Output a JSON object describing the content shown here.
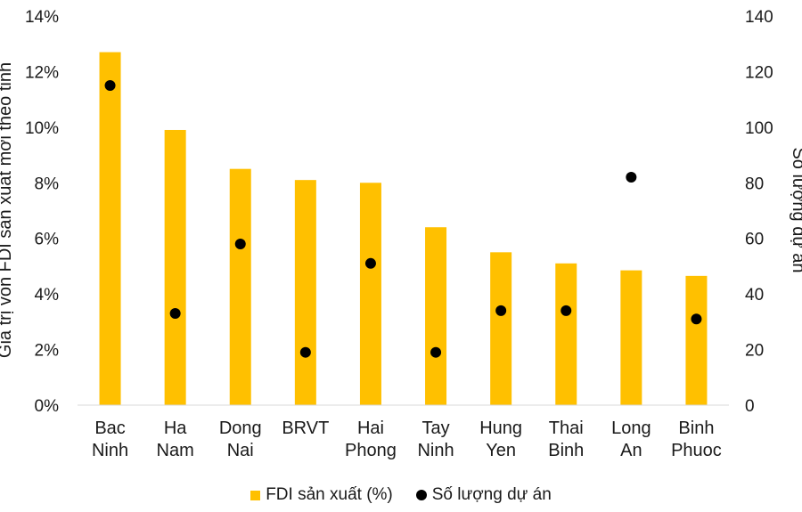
{
  "chart_data": {
    "type": "bar",
    "categories": [
      [
        "Bac",
        "Ninh"
      ],
      [
        "Ha",
        "Nam"
      ],
      [
        "Dong",
        "Nai"
      ],
      [
        "BRVT"
      ],
      [
        "Hai",
        "Phong"
      ],
      [
        "Tay",
        "Ninh"
      ],
      [
        "Hung",
        "Yen"
      ],
      [
        "Thai",
        "Binh"
      ],
      [
        "Long",
        "An"
      ],
      [
        "Binh",
        "Phuoc"
      ]
    ],
    "series": [
      {
        "name": "FDI sản xuất (%)",
        "type": "bar",
        "axis": "left",
        "color": "#FFC000",
        "values": [
          12.7,
          9.9,
          8.5,
          8.1,
          8.0,
          6.4,
          5.5,
          5.1,
          4.85,
          4.65
        ]
      },
      {
        "name": "Số lượng dự án",
        "type": "scatter",
        "axis": "right",
        "color": "#000000",
        "values": [
          115,
          33,
          58,
          19,
          51,
          19,
          34,
          34,
          82,
          31
        ]
      }
    ],
    "y_left": {
      "label": "Giá trị vốn FDI sản xuất mới theo tỉnh",
      "ylim": [
        0,
        14
      ],
      "ticks": [
        "0%",
        "2%",
        "4%",
        "6%",
        "8%",
        "10%",
        "12%",
        "14%"
      ]
    },
    "y_right": {
      "label": "Số lượng dự án",
      "ylim": [
        0,
        140
      ],
      "ticks": [
        "0",
        "20",
        "40",
        "60",
        "80",
        "100",
        "120",
        "140"
      ]
    },
    "grid": false,
    "legend_position": "bottom"
  }
}
